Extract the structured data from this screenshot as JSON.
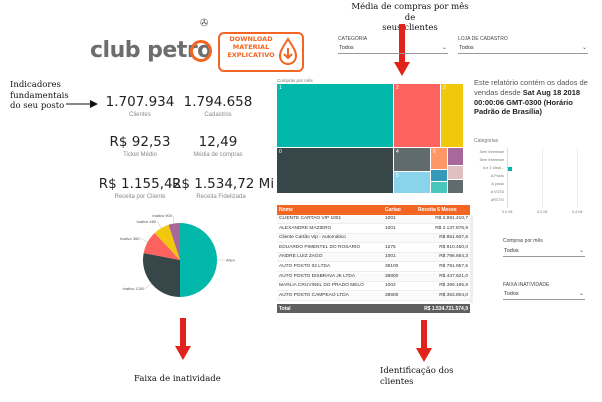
{
  "logo": {
    "text": "club petro",
    "badge_line1": "DOWNLOAD",
    "badge_line2": "MATERIAL",
    "badge_line3": "EXPLICATIVO"
  },
  "annotations": {
    "kpis": [
      "Indicadores",
      "fundamentais",
      "do seu posto"
    ],
    "treemap": [
      "Média de compras por mês de",
      "seus clientes"
    ],
    "inactivity": "Faixa de inatividade",
    "clients": [
      "Identificação dos",
      "clientes"
    ]
  },
  "kpis": [
    {
      "value": "1.707.934",
      "label": "Clientes"
    },
    {
      "value": "1.794.658",
      "label": "Cadastros"
    },
    {
      "value": "R$ 92,53",
      "label": "Ticket Médio"
    },
    {
      "value": "12,49",
      "label": "Média de compras"
    },
    {
      "value": "R$ 1.155,42",
      "label": "Receita por Cliente"
    },
    {
      "value": "R$ 1.534,72 Mi",
      "label": "Receita Fidelizada"
    }
  ],
  "slicers": {
    "categoria": {
      "label": "CATEGORIA",
      "value": "Todos"
    },
    "loja": {
      "label": "LOJA DE CADASTRO",
      "value": "Todos"
    },
    "compras": {
      "label": "Compras por mês",
      "value": "Todos"
    },
    "faixa": {
      "label": "FAIXA INATIVIDADE",
      "value": "Todos"
    }
  },
  "treemap": {
    "title": "Compras por mês",
    "cells": [
      {
        "label": "1",
        "color": "#01B8AA"
      },
      {
        "label": "2",
        "color": "#FD625E"
      },
      {
        "label": "3",
        "color": "#F2C80F"
      },
      {
        "label": "0",
        "color": "#374649"
      },
      {
        "label": "4",
        "color": "#5F6B6D"
      },
      {
        "label": "5",
        "color": "#8AD4EB"
      },
      {
        "label": "6",
        "color": "#FE9666"
      },
      {
        "label": "",
        "color": "#A66999"
      },
      {
        "label": "",
        "color": "#3599B8"
      },
      {
        "label": "",
        "color": "#DFBFBF"
      },
      {
        "label": "",
        "color": "#4AC5BB"
      },
      {
        "label": "",
        "color": "#5F6B6D"
      }
    ]
  },
  "report_info": {
    "text": "Este relatório contém os dados de vendas desde",
    "date": "Sat Aug 18 2018 00:00:06 GMT-0300 (Horário Padrão de Brasília)"
  },
  "categorias": {
    "title": "Categorias",
    "labels": [
      "Sem Interesse",
      "Sem Interesse",
      "A e 3 Ideal...",
      "A Posto",
      "A posto",
      "A VOTA",
      "ARCTO"
    ],
    "values": [
      1,
      0.8,
      5.4,
      0.5,
      0.4,
      0.6,
      0.3
    ],
    "ticks": [
      "0,0 Mi",
      "0,2 Mi",
      "0,4 Mi"
    ]
  },
  "table": {
    "headers": [
      "Nome",
      "Cartao",
      "Receita 6 Meses"
    ],
    "rows": [
      [
        "CLIENTE CARTAO VIP 1001",
        "1001",
        "R$ 2.991.410,7"
      ],
      [
        "ALEXANDRE MAZIERO",
        "1001",
        "R$ 2.137.876,9"
      ],
      [
        "Cliente Cartão Vip - Automático",
        "",
        "R$ 851.607,6"
      ],
      [
        "EDUARDO PIMENTEL DO ROSARIO",
        "1275",
        "R$ 810.450,0"
      ],
      [
        "ANDRE LUIZ ZAGO",
        "1001",
        "R$ 796.664,3"
      ],
      [
        "AUTO POSTO 02 LTDA",
        "39100",
        "R$ 791.957,5"
      ],
      [
        "AUTO POSTO DISBRAVA JK LTDA",
        "38800",
        "R$ 447.621,0"
      ],
      [
        "MARLIA CRUVINEL DO PRADO MELO",
        "1002",
        "R$ 399.165,9"
      ],
      [
        "AUTO POSTO CAMPEAO LTDA",
        "38900",
        "R$ 363.804,0"
      ]
    ],
    "total_label": "Total",
    "total_value": "R$ 1.534.721.574,9"
  },
  "chart_data": {
    "type": "pie",
    "title": "",
    "categories": [
      "Ativo",
      "Inativo 1200",
      "Inativo 360",
      "Inativo 480",
      "Inativo 900"
    ],
    "values": [
      50,
      28,
      10,
      7,
      5
    ],
    "colors": [
      "#01B8AA",
      "#374649",
      "#FD625E",
      "#F2C80F",
      "#A66999"
    ]
  }
}
